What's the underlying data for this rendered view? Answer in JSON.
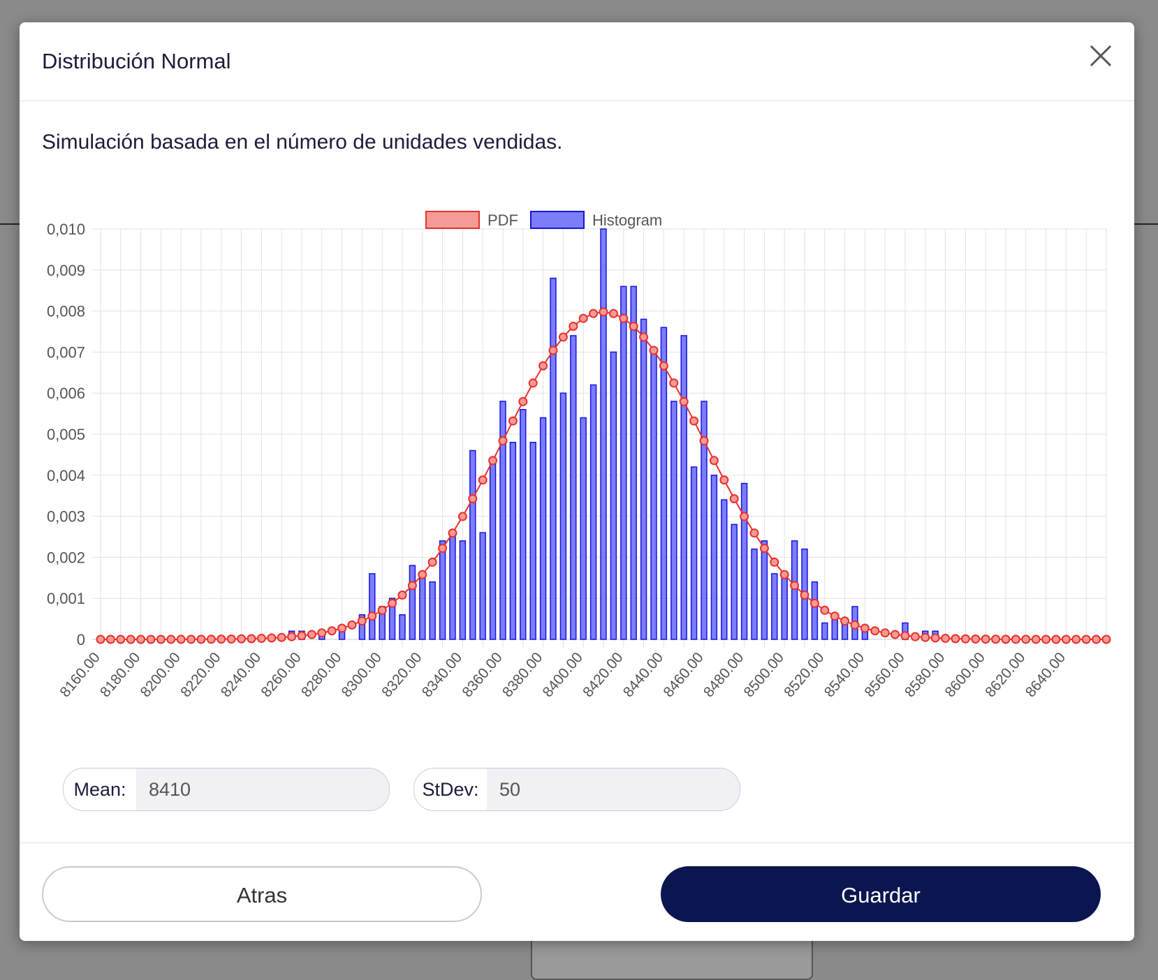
{
  "modal": {
    "title": "Distribución Normal",
    "subtitle": "Simulación basada en el número de unidades vendidas."
  },
  "inputs": {
    "mean_label": "Mean:",
    "mean_value": "8410",
    "stdev_label": "StDev:",
    "stdev_value": "50"
  },
  "footer": {
    "back_label": "Atras",
    "save_label": "Guardar"
  },
  "colors": {
    "pdf_line": "#e8302a",
    "pdf_fill": "#f59b97",
    "histogram_fill": "#7d7dfa",
    "histogram_border": "#1515e0",
    "primary_button": "#0b1650"
  },
  "chart_data": {
    "type": "bar",
    "legend": [
      "PDF",
      "Histogram"
    ],
    "legend_position": "top",
    "grid": true,
    "ylim": [
      0,
      0.01
    ],
    "yticks": [
      "0",
      "0,001",
      "0,002",
      "0,003",
      "0,004",
      "0,005",
      "0,006",
      "0,007",
      "0,008",
      "0,009",
      "0,010"
    ],
    "xlim": [
      8160,
      8660
    ],
    "xticks": [
      "8160.00",
      "8180.00",
      "8200.00",
      "8220.00",
      "8240.00",
      "8260.00",
      "8280.00",
      "8300.00",
      "8320.00",
      "8340.00",
      "8360.00",
      "8380.00",
      "8400.00",
      "8420.00",
      "8440.00",
      "8460.00",
      "8480.00",
      "8500.00",
      "8520.00",
      "8540.00",
      "8560.00",
      "8580.00",
      "8600.00",
      "8620.00",
      "8640.00"
    ],
    "pdf": {
      "name": "PDF",
      "mean": 8410,
      "stdev": 50,
      "x_start": 8160,
      "x_step": 5,
      "points": 101
    },
    "histogram": {
      "name": "Histogram",
      "x": [
        8255,
        8260,
        8270,
        8280,
        8290,
        8295,
        8300,
        8305,
        8310,
        8315,
        8320,
        8325,
        8330,
        8335,
        8340,
        8345,
        8350,
        8355,
        8360,
        8365,
        8370,
        8375,
        8380,
        8385,
        8390,
        8395,
        8400,
        8405,
        8410,
        8415,
        8420,
        8425,
        8430,
        8435,
        8440,
        8445,
        8450,
        8455,
        8460,
        8465,
        8470,
        8475,
        8480,
        8485,
        8490,
        8495,
        8500,
        8505,
        8510,
        8515,
        8520,
        8525,
        8530,
        8535,
        8540,
        8560,
        8570,
        8575
      ],
      "values": [
        0.0002,
        0.0002,
        0.0002,
        0.0002,
        0.0006,
        0.0016,
        0.0008,
        0.001,
        0.0006,
        0.0018,
        0.0016,
        0.0014,
        0.0024,
        0.0026,
        0.0024,
        0.0046,
        0.0026,
        0.0044,
        0.0058,
        0.0048,
        0.0056,
        0.0048,
        0.0054,
        0.0088,
        0.006,
        0.0074,
        0.0054,
        0.0062,
        0.01,
        0.007,
        0.0086,
        0.0086,
        0.0078,
        0.007,
        0.0076,
        0.0058,
        0.0074,
        0.0042,
        0.0058,
        0.004,
        0.0034,
        0.0028,
        0.0038,
        0.0022,
        0.0024,
        0.0016,
        0.0016,
        0.0024,
        0.0022,
        0.0014,
        0.0004,
        0.0006,
        0.0004,
        0.0008,
        0.0002,
        0.0004,
        0.0002,
        0.0002
      ]
    }
  }
}
